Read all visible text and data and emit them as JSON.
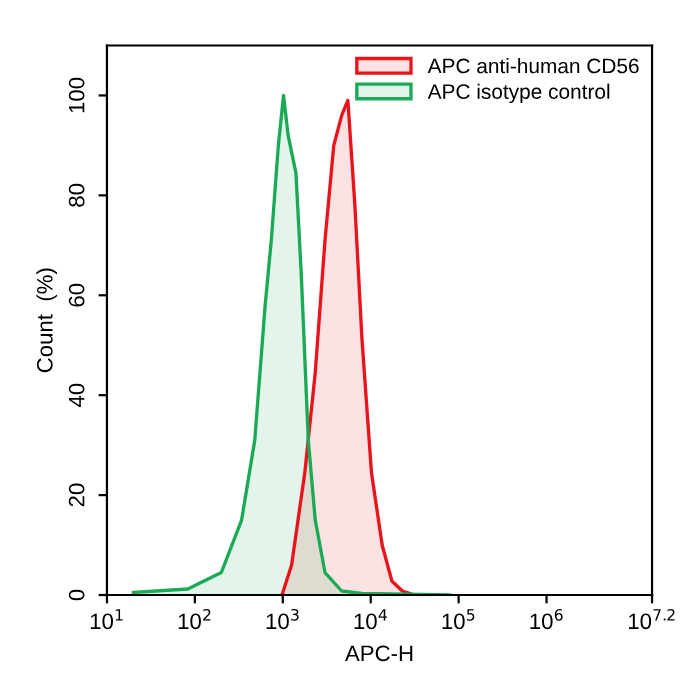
{
  "chart_data": {
    "type": "area",
    "xlabel": "APC-H",
    "ylabel": "Count  (%)",
    "log": "x",
    "xlim": [
      10,
      15849000
    ],
    "ylim": [
      0,
      110
    ],
    "xticks": [
      {
        "value": 10,
        "label": "10$^{1}$"
      },
      {
        "value": 100,
        "label": "10$^{2}$"
      },
      {
        "value": 1000,
        "label": "10$^{3}$"
      },
      {
        "value": 10000,
        "label": "10$^{4}$"
      },
      {
        "value": 100000,
        "label": "10$^{5}$"
      },
      {
        "value": 1000000,
        "label": "10$^{6}$"
      },
      {
        "value": 15849000,
        "label": "10$^{7.2}$"
      }
    ],
    "yticks": [
      0,
      20,
      40,
      60,
      80,
      100
    ],
    "grid": false,
    "legend": "top right",
    "marker": "none",
    "line_style": "solid",
    "series": [
      {
        "name": "APC anti-human CD56",
        "color": "#e8141c",
        "x": [
          980,
          1260,
          1780,
          2340,
          3020,
          3800,
          4680,
          5500,
          6610,
          7940,
          10200,
          13500,
          17400,
          22900,
          31600
        ],
        "values": [
          0,
          6,
          24.5,
          44.5,
          71,
          90,
          96,
          99,
          78,
          51.5,
          24.5,
          10,
          2.8,
          0.8,
          0
        ]
      },
      {
        "name": "APC isotype control",
        "color": "#1aaa55",
        "x": [
          20,
          83,
          200,
          340,
          480,
          630,
          740,
          890,
          1020,
          1150,
          1410,
          1620,
          1950,
          2340,
          3020,
          4680,
          7940,
          79000
        ],
        "values": [
          0.5,
          1.2,
          4.5,
          15,
          31,
          58,
          71,
          90,
          100,
          92,
          84.5,
          64.5,
          31,
          15,
          4.5,
          0.8,
          0.3,
          0
        ]
      }
    ]
  }
}
